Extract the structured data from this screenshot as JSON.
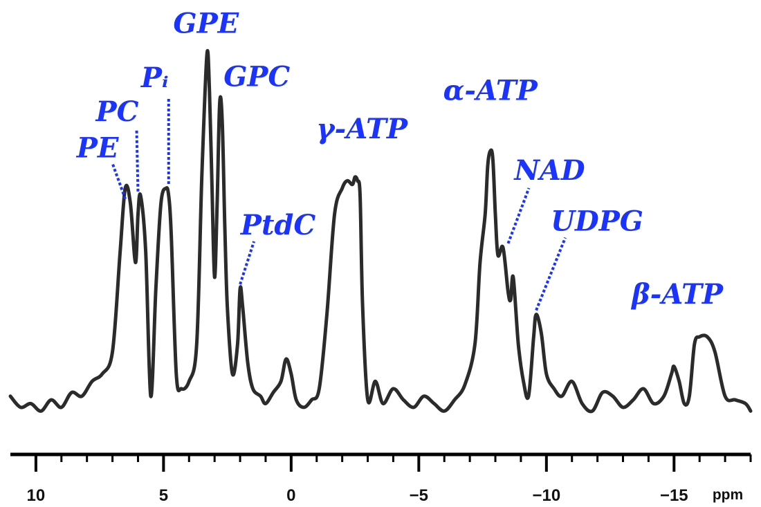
{
  "chart_data": {
    "type": "line",
    "title": "",
    "xlabel": "ppm",
    "ylabel": "",
    "xlim": [
      11,
      -18
    ],
    "x_reversed": true,
    "grid": false,
    "x_ticks": [
      10,
      5,
      0,
      -5,
      -10,
      -15
    ],
    "x_tick_labels": [
      "10",
      "5",
      "0",
      "−5",
      "−10",
      "−15"
    ],
    "colors": {
      "spectrum": "#2b2b2b",
      "label": "#1a33ff",
      "axis": "#000000"
    },
    "series": [
      {
        "x": [
          11.0,
          10.6,
          10.2,
          9.8,
          9.4,
          9.0,
          8.6,
          8.2,
          7.8,
          7.4,
          7.0,
          6.7,
          6.5,
          6.3,
          6.1,
          6.0,
          5.9,
          5.7,
          5.5,
          5.3,
          5.1,
          4.9,
          4.8,
          4.7,
          4.5,
          4.3,
          4.0,
          3.7,
          3.5,
          3.3,
          3.2,
          3.1,
          3.0,
          2.9,
          2.8,
          2.7,
          2.6,
          2.5,
          2.3,
          2.1,
          2.0,
          1.9,
          1.7,
          1.5,
          1.2,
          1.0,
          0.7,
          0.4,
          0.2,
          0.0,
          -0.2,
          -0.5,
          -0.8,
          -1.1,
          -1.4,
          -1.7,
          -2.0,
          -2.2,
          -2.4,
          -2.5,
          -2.6,
          -2.7,
          -2.8,
          -3.0,
          -3.3,
          -3.6,
          -4.0,
          -4.4,
          -4.8,
          -5.2,
          -5.6,
          -6.0,
          -6.4,
          -6.8,
          -7.2,
          -7.4,
          -7.6,
          -7.7,
          -7.8,
          -7.9,
          -8.0,
          -8.1,
          -8.3,
          -8.5,
          -8.6,
          -8.7,
          -8.9,
          -9.1,
          -9.3,
          -9.5,
          -9.6,
          -9.8,
          -10.0,
          -10.3,
          -10.6,
          -11.0,
          -11.4,
          -11.8,
          -12.2,
          -12.6,
          -13.0,
          -13.4,
          -13.8,
          -14.2,
          -14.6,
          -14.9,
          -15.0,
          -15.2,
          -15.4,
          -15.6,
          -15.8,
          -16.0,
          -16.3,
          -16.6,
          -17.0,
          -17.4,
          -17.8,
          -18.0
        ],
        "y": [
          6,
          3,
          4,
          2,
          5,
          3,
          7,
          6,
          10,
          12,
          18,
          45,
          62,
          58,
          42,
          55,
          60,
          45,
          6,
          35,
          58,
          62,
          60,
          50,
          12,
          8,
          10,
          20,
          65,
          98,
          88,
          62,
          38,
          58,
          85,
          80,
          52,
          30,
          12,
          20,
          35,
          30,
          15,
          8,
          6,
          4,
          7,
          10,
          16,
          12,
          5,
          3,
          5,
          8,
          28,
          55,
          62,
          64,
          63,
          65,
          64,
          60,
          30,
          5,
          10,
          4,
          8,
          5,
          3,
          6,
          4,
          2,
          5,
          9,
          20,
          42,
          55,
          68,
          72,
          70,
          55,
          44,
          46,
          34,
          32,
          38,
          20,
          10,
          6,
          22,
          28,
          23,
          12,
          8,
          6,
          10,
          4,
          2,
          7,
          6,
          3,
          5,
          8,
          4,
          6,
          12,
          14,
          10,
          4,
          6,
          20,
          22,
          22,
          18,
          6,
          5,
          4,
          2
        ]
      }
    ],
    "peak_labels": [
      {
        "text": "PE",
        "x": 6.5,
        "y": 58
      },
      {
        "text": "PC",
        "x": 6.0,
        "y": 60
      },
      {
        "text": "Pᵢ",
        "x": 4.8,
        "y": 62
      },
      {
        "text": "GPE",
        "x": 3.2,
        "y": 98
      },
      {
        "text": "GPC",
        "x": 2.7,
        "y": 85
      },
      {
        "text": "PtdC",
        "x": 2.0,
        "y": 35
      },
      {
        "text": "γ-ATP",
        "x": -2.5,
        "y": 65
      },
      {
        "text": "α-ATP",
        "x": -7.8,
        "y": 72
      },
      {
        "text": "NAD",
        "x": -8.5,
        "y": 46
      },
      {
        "text": "UDPG",
        "x": -9.6,
        "y": 28
      },
      {
        "text": "β-ATP",
        "x": -15.4,
        "y": 22
      }
    ]
  }
}
